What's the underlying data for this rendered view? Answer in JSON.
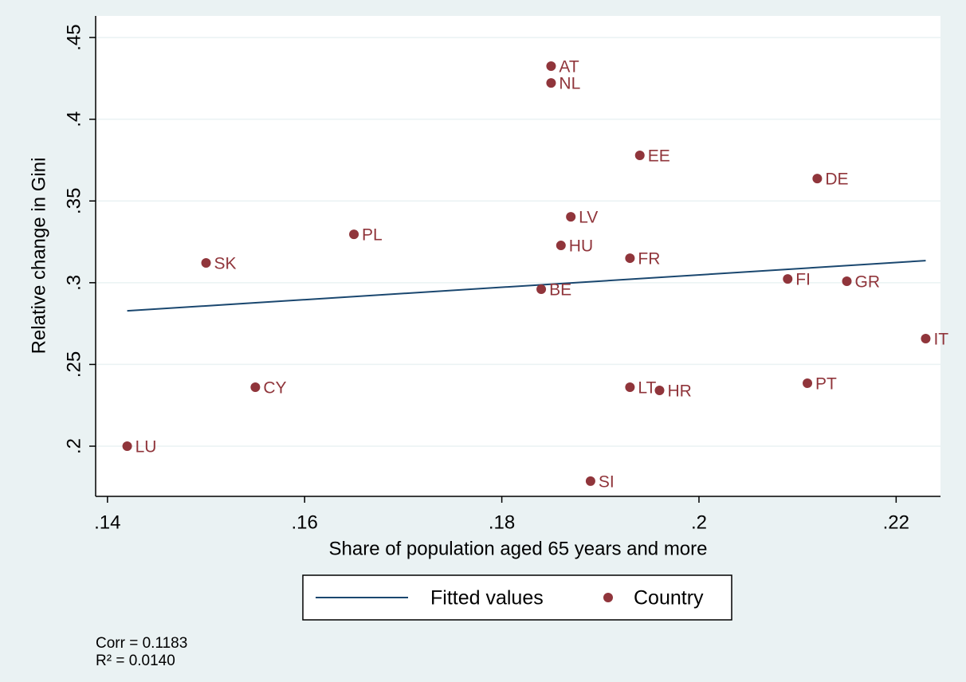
{
  "chart_data": {
    "type": "scatter",
    "xlabel": "Share of population aged 65 years and more",
    "ylabel": "Relative change in Gini",
    "xlim": [
      0.1388,
      0.2245
    ],
    "ylim": [
      0.1693,
      0.4632
    ],
    "xticks": [
      {
        "value": 0.14,
        "label": ".14"
      },
      {
        "value": 0.16,
        "label": ".16"
      },
      {
        "value": 0.18,
        "label": ".18"
      },
      {
        "value": 0.2,
        "label": ".2"
      },
      {
        "value": 0.22,
        "label": ".22"
      }
    ],
    "yticks": [
      {
        "value": 0.2,
        "label": ".2"
      },
      {
        "value": 0.25,
        "label": ".25"
      },
      {
        "value": 0.3,
        "label": ".3"
      },
      {
        "value": 0.35,
        "label": ".35"
      },
      {
        "value": 0.4,
        "label": ".4"
      },
      {
        "value": 0.45,
        "label": ".45"
      }
    ],
    "grid": true,
    "legend": "bottom",
    "series": [
      {
        "name": "Fitted values",
        "kind": "line",
        "color": "#1a476f",
        "x": [
          0.142,
          0.223
        ],
        "values": [
          0.2828,
          0.3135
        ]
      },
      {
        "name": "Country",
        "kind": "points",
        "color": "#90353b",
        "labels": [
          "AT",
          "NL",
          "EE",
          "DE",
          "LV",
          "PL",
          "HU",
          "FR",
          "SK",
          "FI",
          "GR",
          "BE",
          "IT",
          "CY",
          "LT",
          "HR",
          "PT",
          "LU",
          "SI"
        ],
        "x": [
          0.185,
          0.185,
          0.194,
          0.212,
          0.187,
          0.165,
          0.186,
          0.193,
          0.15,
          0.209,
          0.215,
          0.184,
          0.223,
          0.155,
          0.193,
          0.196,
          0.211,
          0.142,
          0.189
        ],
        "values": [
          0.4325,
          0.4222,
          0.3779,
          0.3637,
          0.3403,
          0.3296,
          0.3228,
          0.315,
          0.3121,
          0.3023,
          0.3009,
          0.296,
          0.2658,
          0.2361,
          0.2361,
          0.2341,
          0.2385,
          0.2,
          0.1786
        ]
      }
    ],
    "annotations": [
      "Corr = 0.1183",
      "R² = 0.0140"
    ]
  }
}
